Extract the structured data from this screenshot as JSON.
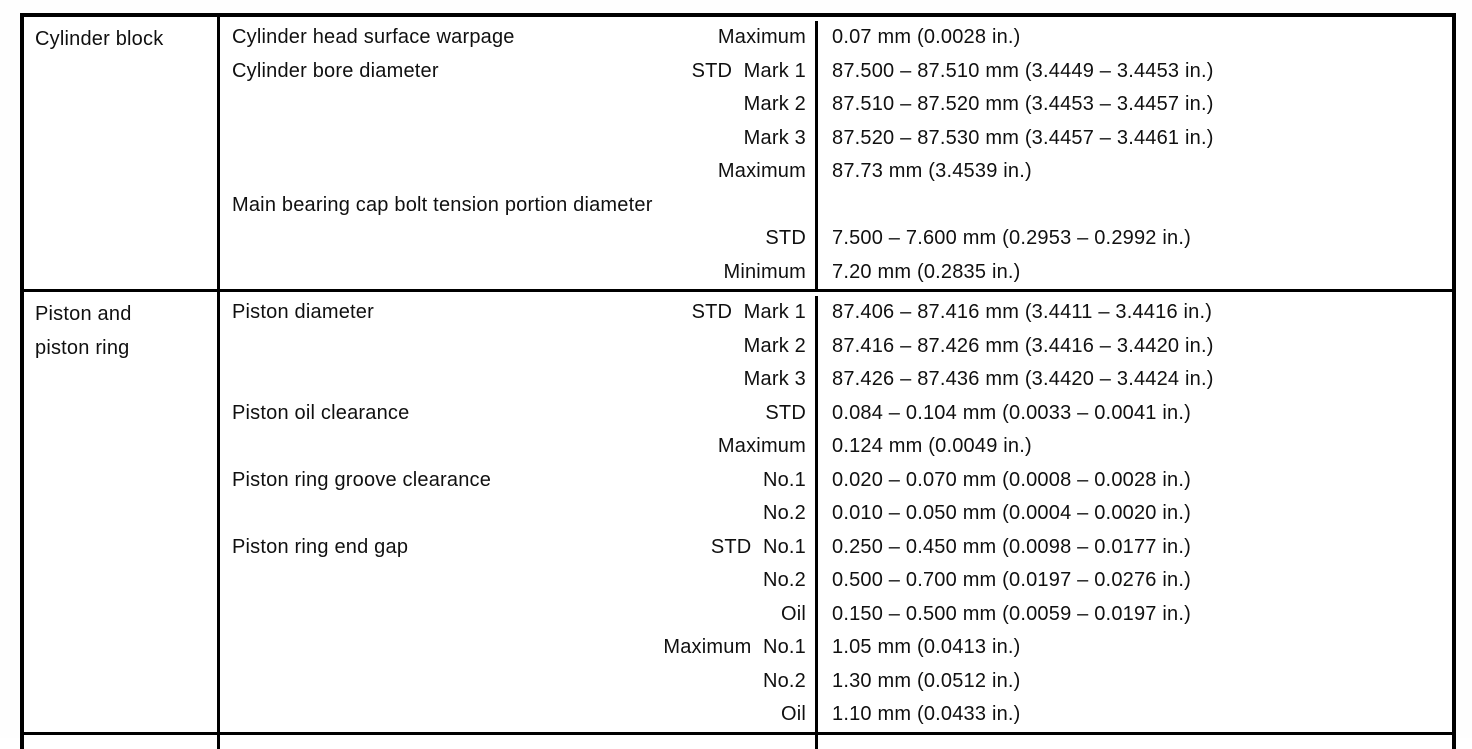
{
  "colors": {
    "background": "#ffffff",
    "border": "#000000",
    "text": "#101010"
  },
  "table": {
    "sections": [
      {
        "component": "Cylinder block",
        "rows": [
          {
            "item": "Cylinder head surface warpage",
            "qualifier": "Maximum",
            "value": "0.07 mm (0.0028 in.)"
          },
          {
            "item": "Cylinder bore diameter",
            "qualifier": "STD  Mark 1",
            "value": "87.500 – 87.510 mm (3.4449 – 3.4453 in.)"
          },
          {
            "item": "",
            "qualifier": "Mark 2",
            "value": "87.510 – 87.520 mm (3.4453 – 3.4457 in.)"
          },
          {
            "item": "",
            "qualifier": "Mark 3",
            "value": "87.520 – 87.530 mm (3.4457 – 3.4461 in.)"
          },
          {
            "item": "",
            "qualifier": "Maximum",
            "value": "87.73 mm (3.4539 in.)"
          },
          {
            "item": "Main bearing cap bolt tension portion diameter",
            "qualifier": "",
            "value": ""
          },
          {
            "item": "",
            "qualifier": "STD",
            "value": "7.500 – 7.600 mm (0.2953 – 0.2992 in.)"
          },
          {
            "item": "",
            "qualifier": "Minimum",
            "value": "7.20 mm (0.2835 in.)"
          }
        ]
      },
      {
        "component": "Piston and\npiston ring",
        "rows": [
          {
            "item": "Piston diameter",
            "qualifier": "STD  Mark 1",
            "value": "87.406 – 87.416 mm (3.4411 – 3.4416 in.)"
          },
          {
            "item": "",
            "qualifier": "Mark 2",
            "value": "87.416 – 87.426 mm (3.4416 – 3.4420 in.)"
          },
          {
            "item": "",
            "qualifier": "Mark 3",
            "value": "87.426 – 87.436 mm (3.4420 – 3.4424 in.)"
          },
          {
            "item": "Piston oil clearance",
            "qualifier": "STD",
            "value": "0.084 – 0.104 mm (0.0033 – 0.0041 in.)"
          },
          {
            "item": "",
            "qualifier": "Maximum",
            "value": "0.124 mm (0.0049 in.)"
          },
          {
            "item": "Piston ring groove clearance",
            "qualifier": "No.1",
            "value": "0.020 – 0.070 mm (0.0008 – 0.0028 in.)"
          },
          {
            "item": "",
            "qualifier": "No.2",
            "value": "0.010 – 0.050 mm (0.0004 – 0.0020 in.)"
          },
          {
            "item": "Piston ring end gap",
            "qualifier": "STD  No.1",
            "value": "0.250 – 0.450 mm (0.0098 – 0.0177 in.)"
          },
          {
            "item": "",
            "qualifier": "No.2",
            "value": "0.500 – 0.700 mm (0.0197 – 0.0276 in.)"
          },
          {
            "item": "",
            "qualifier": "Oil",
            "value": "0.150 – 0.500 mm (0.0059 – 0.0197 in.)"
          },
          {
            "item": "",
            "qualifier": "Maximum  No.1",
            "value": "1.05 mm (0.0413 in.)"
          },
          {
            "item": "",
            "qualifier": "No.2",
            "value": "1.30 mm (0.0512 in.)"
          },
          {
            "item": "",
            "qualifier": "Oil",
            "value": "1.10 mm (0.0433 in.)"
          }
        ]
      },
      {
        "component": "",
        "rows": [
          {
            "item": "",
            "qualifier": "",
            "value": ""
          }
        ]
      }
    ]
  }
}
